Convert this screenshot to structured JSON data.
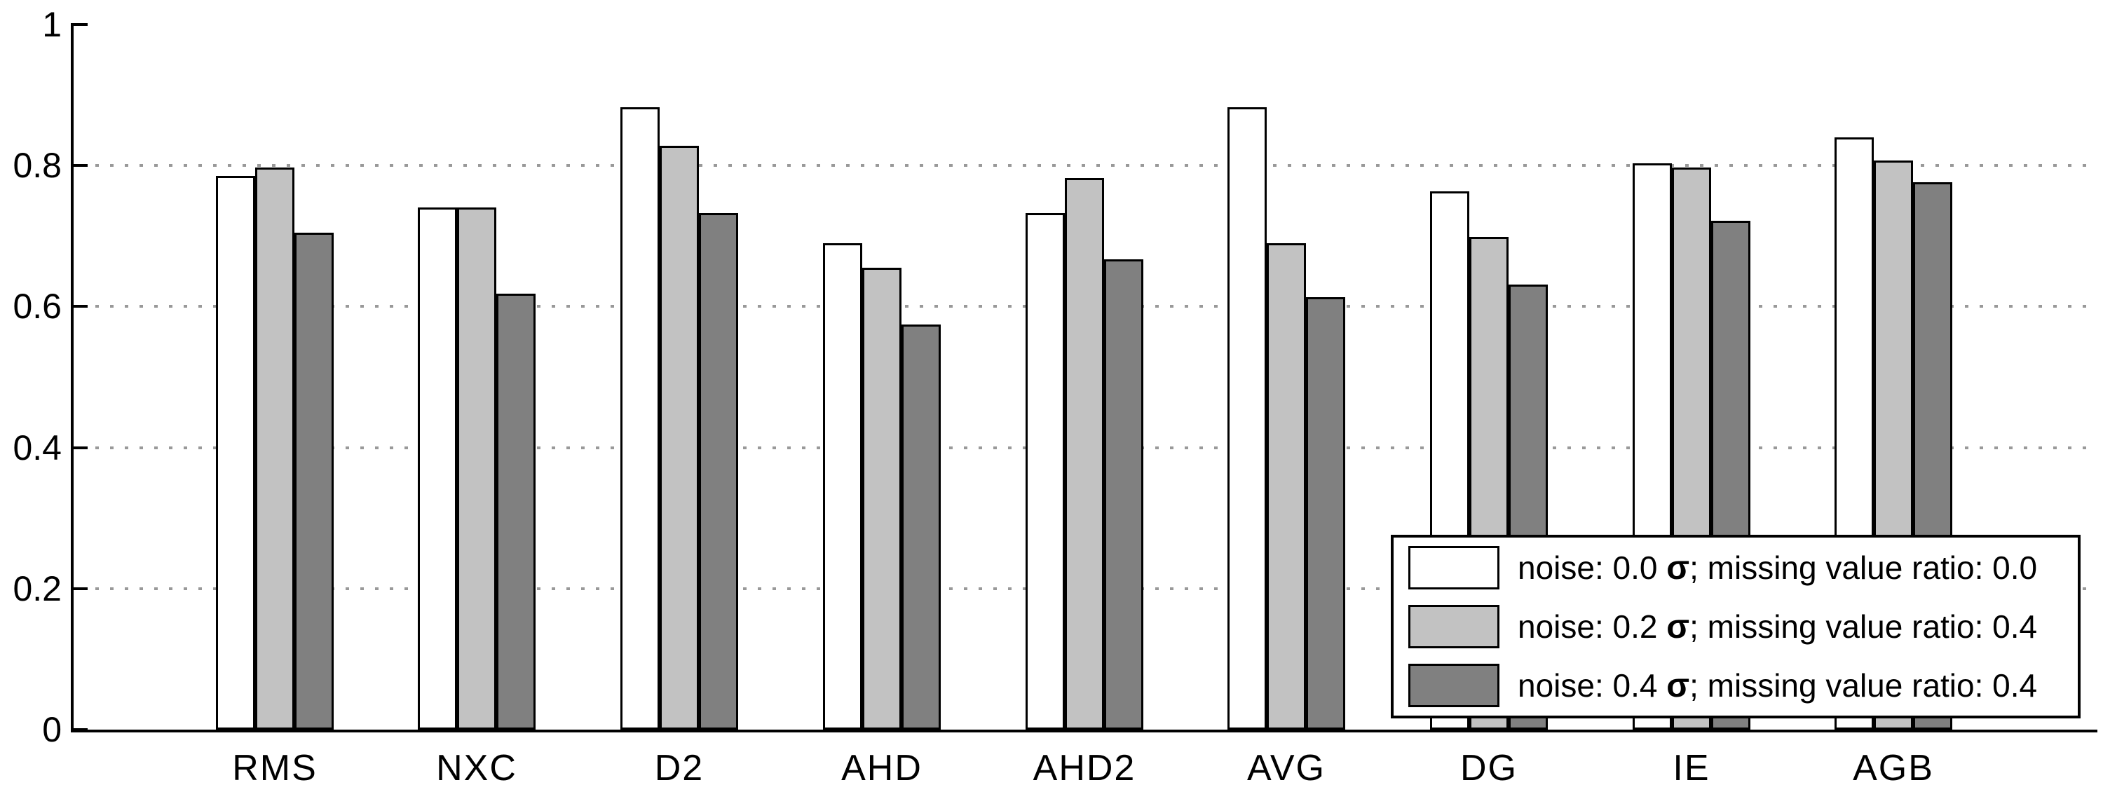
{
  "chart_data": {
    "type": "bar",
    "title": "",
    "xlabel": "",
    "ylabel": "",
    "categories": [
      "RMS",
      "NXC",
      "D2",
      "AHD",
      "AHD2",
      "AVG",
      "DG",
      "IE",
      "AGB"
    ],
    "series": [
      {
        "name": "noise: 0.0 σ; missing value ratio: 0.0",
        "color": "#ffffff",
        "values": [
          0.785,
          0.741,
          0.883,
          0.69,
          0.733,
          0.883,
          0.763,
          0.803,
          0.84
        ]
      },
      {
        "name": "noise: 0.2 σ; missing value ratio: 0.4",
        "color": "#c2c2c2",
        "values": [
          0.797,
          0.741,
          0.828,
          0.655,
          0.782,
          0.69,
          0.699,
          0.797,
          0.807
        ]
      },
      {
        "name": "noise: 0.4 σ; missing value ratio: 0.4",
        "color": "#808080",
        "values": [
          0.705,
          0.618,
          0.733,
          0.575,
          0.667,
          0.613,
          0.631,
          0.722,
          0.776
        ]
      }
    ],
    "ylim": [
      0,
      1
    ],
    "y_ticks": [
      {
        "value": 0,
        "label": "0"
      },
      {
        "value": 0.2,
        "label": "0.2"
      },
      {
        "value": 0.4,
        "label": "0.4"
      },
      {
        "value": 0.6,
        "label": "0.6"
      },
      {
        "value": 0.8,
        "label": "0.8"
      },
      {
        "value": 1,
        "label": "1"
      }
    ],
    "grid_values": [
      0.2,
      0.4,
      0.6,
      0.8
    ],
    "grid_style": "dotted horizontal",
    "grid_color": "#999999",
    "edge_color": "#000000",
    "legend": {
      "position": "lower-right",
      "entries": [
        {
          "pre": "noise: 0.0 ",
          "sigma": "σ",
          "post": "; missing value ratio: 0.0",
          "color": "#ffffff"
        },
        {
          "pre": "noise: 0.2 ",
          "sigma": "σ",
          "post": "; missing value ratio: 0.4",
          "color": "#c2c2c2"
        },
        {
          "pre": "noise: 0.4 ",
          "sigma": "σ",
          "post": "; missing value ratio: 0.4",
          "color": "#808080"
        }
      ]
    }
  }
}
